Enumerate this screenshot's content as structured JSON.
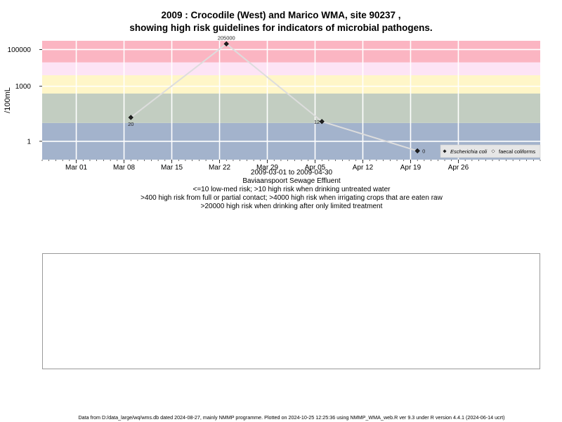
{
  "title_line1": "2009 : Crocodile (West) and Marico WMA, site 90237 ,",
  "title_line2": "showing high risk guidelines for indicators of microbial pathogens.",
  "subtitle": {
    "date_range": "2009-03-01 to 2009-04-30",
    "site_name": "Baviaanspoort Sewage Effluent",
    "note1": "<=10 low-med risk; >10 high risk when drinking untreated water",
    "note2": ">400 high risk from full or partial contact; >4000 high risk when irrigating crops that are eaten raw",
    "note3": ">20000 high risk when drinking after only limited treatment"
  },
  "footer": "Data from D:/data_large/wq/wms.db dated 2024-08-27, mainly NMMP programme. Plotted on 2024-10-25 12:25:36 using NMMP_WMA_web.R ver 9.3 under R version 4.4.1 (2024-06-14 ucrt)",
  "chart_data": {
    "type": "line",
    "ylabel": "/100mL",
    "y_scale": "log",
    "ylim": [
      0.1,
      300000
    ],
    "y_ticks": [
      1,
      1000,
      100000
    ],
    "y_tick_labels": [
      "1",
      "1000",
      "100000"
    ],
    "xlim": [
      "2009-02-24",
      "2009-05-08"
    ],
    "x_ticks": [
      "2009-03-01",
      "2009-03-08",
      "2009-03-15",
      "2009-03-22",
      "2009-03-29",
      "2009-04-05",
      "2009-04-12",
      "2009-04-19",
      "2009-04-26"
    ],
    "x_tick_labels": [
      "Mar 01",
      "Mar 08",
      "Mar 15",
      "Mar 22",
      "Mar 29",
      "Apr 05",
      "Apr 12",
      "Apr 19",
      "Apr 26"
    ],
    "bands": [
      {
        "from": 0.1,
        "to": 10,
        "color": "#a3b3cc"
      },
      {
        "from": 10,
        "to": 400,
        "color": "#c2cdc1"
      },
      {
        "from": 400,
        "to": 4000,
        "color": "#fff6c8"
      },
      {
        "from": 4000,
        "to": 20000,
        "color": "#fde4f5"
      },
      {
        "from": 20000,
        "to": 300000,
        "color": "#fbb5c2"
      }
    ],
    "series": [
      {
        "name": "Escherichia coli",
        "color": "#dddddd",
        "marker_color": "#222222",
        "points": [
          {
            "x": "2009-03-09",
            "y": 20,
            "label": "20"
          },
          {
            "x": "2009-03-23",
            "y": 205000,
            "label": "205000"
          },
          {
            "x": "2009-04-06",
            "y": 12,
            "label": "12"
          },
          {
            "x": "2009-04-20",
            "y": 0.3,
            "label": "0"
          }
        ]
      },
      {
        "name": "faecal coliforms",
        "color": "#dddddd",
        "marker_color": "#ffffff",
        "points": []
      }
    ],
    "legend_position": "bottom-right"
  }
}
